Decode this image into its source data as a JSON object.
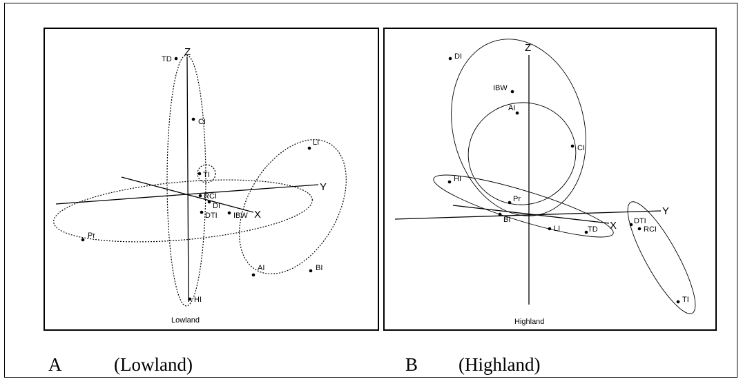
{
  "figure": {
    "panels": [
      {
        "id": "A",
        "inner_label": "Lowland",
        "caption_letter": "A",
        "caption_name": "(Lowland)",
        "axes": [
          "Z",
          "Y",
          "X"
        ],
        "points": [
          "TD",
          "CI",
          "TI",
          "RCI",
          "DI",
          "DTI",
          "IBW",
          "LI",
          "Pr",
          "AI",
          "BI",
          "HI"
        ]
      },
      {
        "id": "B",
        "inner_label": "Highland",
        "caption_letter": "B",
        "caption_name": "(Highland)",
        "axes": [
          "Z",
          "Y",
          "X"
        ],
        "points": [
          "DI",
          "IBW",
          "AI",
          "CI",
          "HI",
          "Pr",
          "BI",
          "LI",
          "TD",
          "DTI",
          "RCI",
          "TI"
        ]
      }
    ]
  },
  "colors": {
    "ink": "#000000",
    "background": "#ffffff"
  }
}
